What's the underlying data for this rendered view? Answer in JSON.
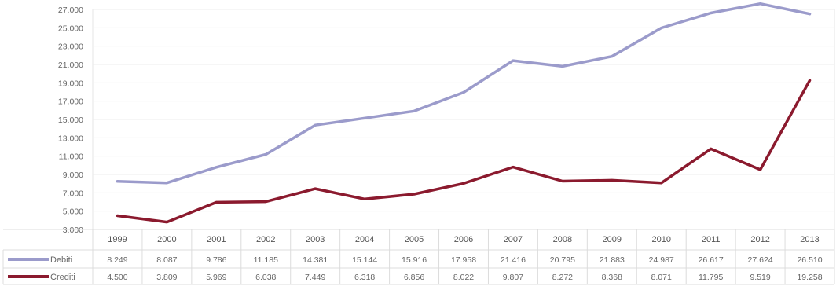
{
  "chart_data": {
    "type": "line",
    "title": "",
    "xlabel": "",
    "ylabel": "",
    "ylim": [
      3000,
      27000
    ],
    "y_ticks": [
      "27.000",
      "25.000",
      "23.000",
      "21.000",
      "19.000",
      "17.000",
      "15.000",
      "13.000",
      "11.000",
      "9.000",
      "7.000",
      "5.000",
      "3.000"
    ],
    "y_tick_values": [
      27000,
      25000,
      23000,
      21000,
      19000,
      17000,
      15000,
      13000,
      11000,
      9000,
      7000,
      5000,
      3000
    ],
    "grid": true,
    "legend": "data-table",
    "categories": [
      "1999",
      "2000",
      "2001",
      "2002",
      "2003",
      "2004",
      "2005",
      "2006",
      "2007",
      "2008",
      "2009",
      "2010",
      "2011",
      "2012",
      "2013"
    ],
    "series": [
      {
        "name": "Debiti",
        "color": "#9b9bcb",
        "values": [
          8249,
          8087,
          9786,
          11185,
          14381,
          15144,
          15916,
          17958,
          21416,
          20795,
          21883,
          24987,
          26617,
          27624,
          26510
        ],
        "labels": [
          "8.249",
          "8.087",
          "9.786",
          "11.185",
          "14.381",
          "15.144",
          "15.916",
          "17.958",
          "21.416",
          "20.795",
          "21.883",
          "24.987",
          "26.617",
          "27.624",
          "26.510"
        ]
      },
      {
        "name": "Crediti",
        "color": "#8b1a2e",
        "values": [
          4500,
          3809,
          5969,
          6038,
          7449,
          6318,
          6856,
          8022,
          9807,
          8272,
          8368,
          8071,
          11795,
          9519,
          19258
        ],
        "labels": [
          "4.500",
          "3.809",
          "5.969",
          "6.038",
          "7.449",
          "6.318",
          "6.856",
          "8.022",
          "9.807",
          "8.272",
          "8.368",
          "8.071",
          "11.795",
          "9.519",
          "19.258"
        ]
      }
    ]
  }
}
